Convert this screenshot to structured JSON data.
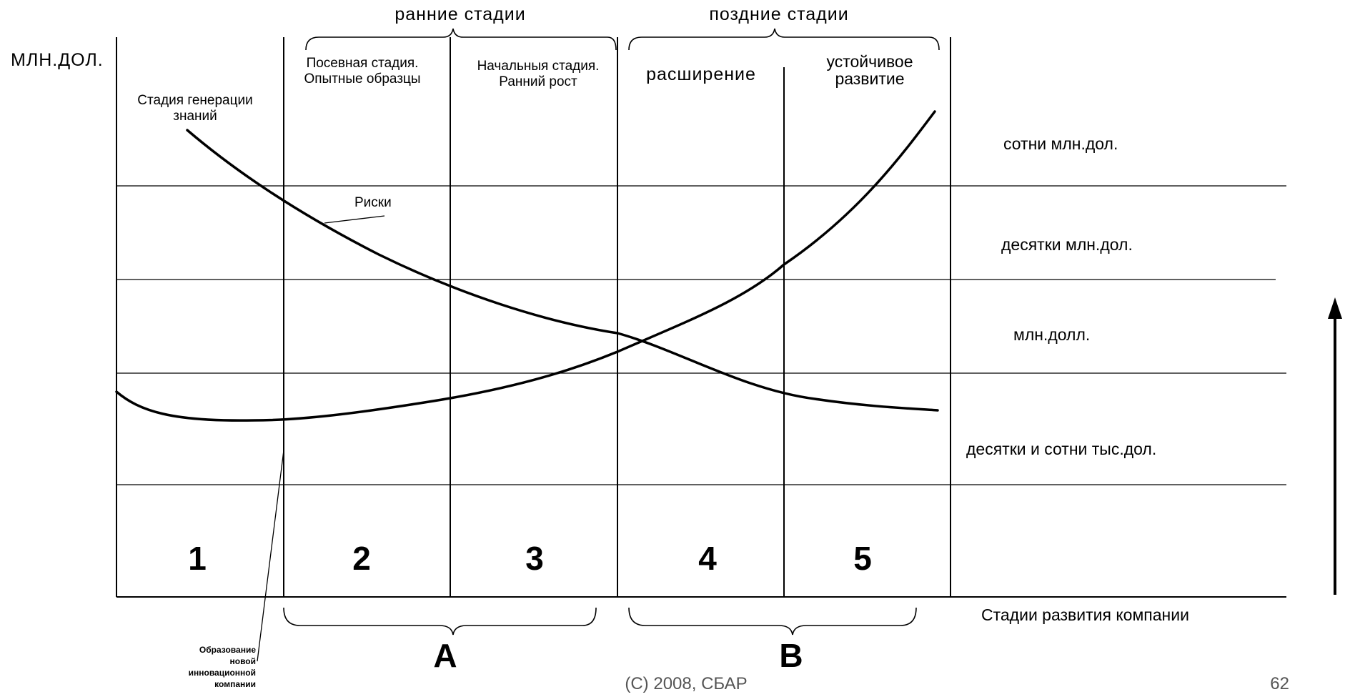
{
  "diagram": {
    "y_unit": "МЛН.ДОЛ.",
    "top_groups": [
      "ранние стадии",
      "поздние стадии"
    ],
    "stage_headers": [
      {
        "lines": [
          "Стадия генерации",
          "знаний"
        ]
      },
      {
        "lines": [
          "Посевная стадия.",
          "Опытные образцы"
        ]
      },
      {
        "lines": [
          "Начальныя стадия.",
          "Ранний рост"
        ]
      },
      {
        "lines": [
          "расширение"
        ]
      },
      {
        "lines": [
          "устойчивое",
          "развитие"
        ]
      }
    ],
    "level_labels": [
      "сотни млн.дол.",
      "десятки млн.дол.",
      "млн.долл.",
      "десятки и сотни тыс.дол."
    ],
    "stage_numbers": [
      "1",
      "2",
      "3",
      "4",
      "5"
    ],
    "risk_label": "Риски",
    "x_axis_label": "Стадии развития компании",
    "bottom_groups": [
      "A",
      "B"
    ],
    "founding_note": [
      "Образование",
      "новой",
      "инновационной",
      "компании"
    ]
  },
  "footer": {
    "copyright": "(C) 2008, СБАР",
    "page": "62"
  }
}
